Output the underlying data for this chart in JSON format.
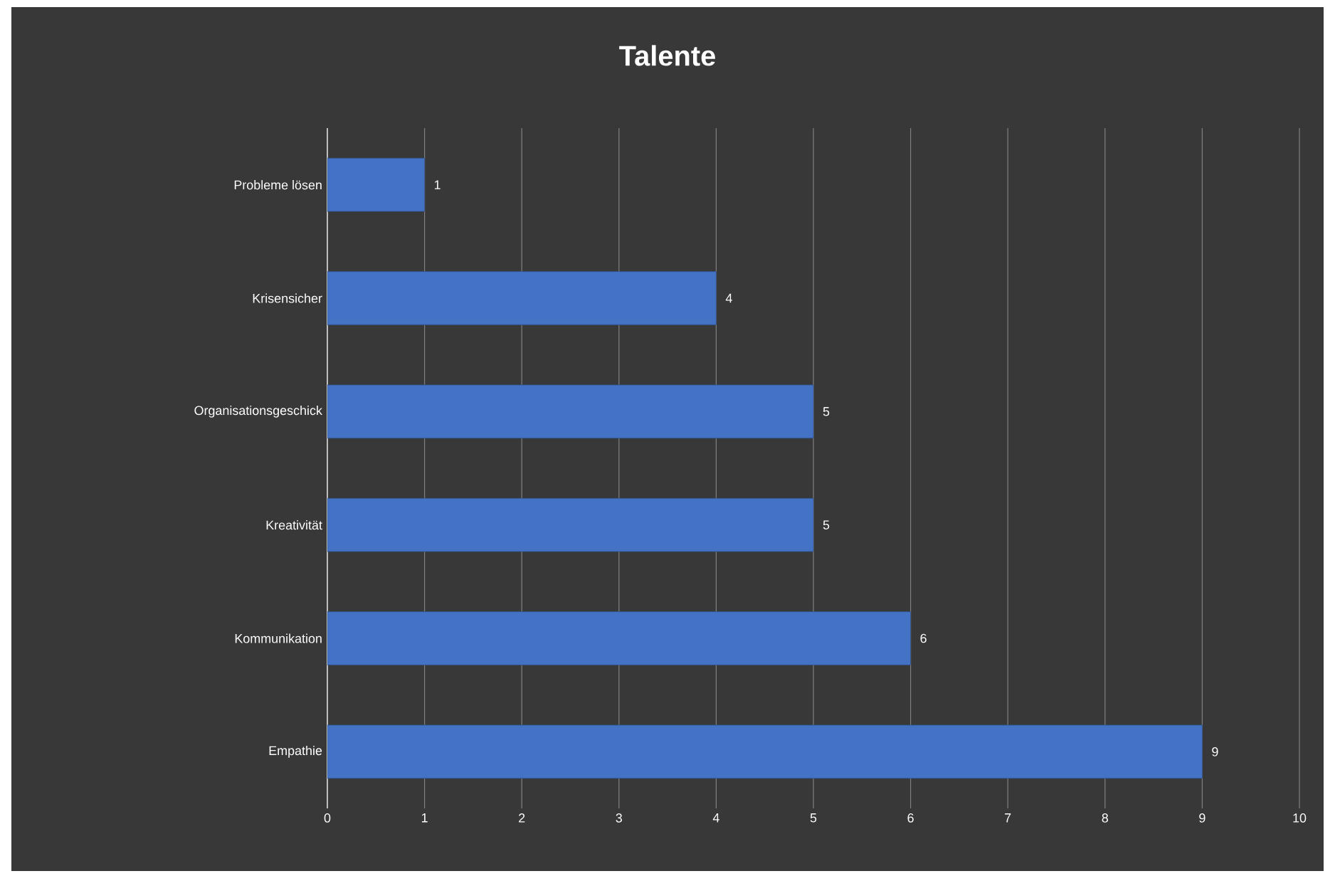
{
  "chart_data": {
    "type": "bar",
    "orientation": "horizontal",
    "title": "Talente",
    "categories": [
      "Probleme lösen",
      "Krisensicher",
      "Organisationsgeschick",
      "Kreativität",
      "Kommunikation",
      "Empathie"
    ],
    "values": [
      1,
      4,
      5,
      5,
      6,
      9
    ],
    "color": "#4472c4",
    "xlim": [
      0,
      10
    ],
    "xticks": [
      0,
      1,
      2,
      3,
      4,
      5,
      6,
      7,
      8,
      9,
      10
    ],
    "grid": "x",
    "data_labels": true
  }
}
